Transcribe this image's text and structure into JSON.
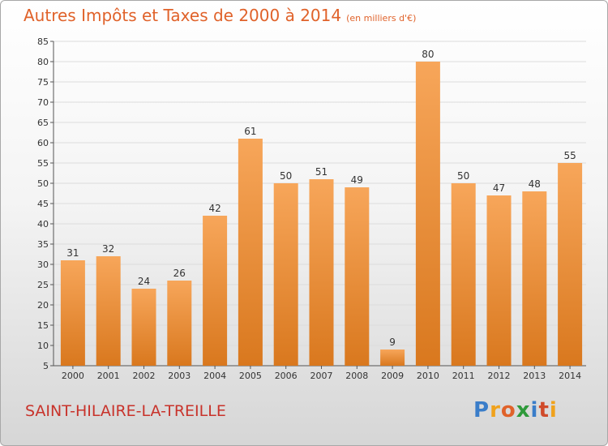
{
  "title": "Autres Impôts et Taxes de 2000 à 2014",
  "subtitle": "(en milliers d'€)",
  "town": "SAINT-HILAIRE-LA-TREILLE",
  "logo": {
    "letters": [
      "P",
      "r",
      "o",
      "x",
      "i",
      "t",
      "i"
    ],
    "colors": [
      "#3a7dc9",
      "#f0a21c",
      "#e0622a",
      "#2f9a3b",
      "#3a7dc9",
      "#d04a2a",
      "#f0a21c"
    ]
  },
  "colors": {
    "title": "#e0622a",
    "bar_top": "#f7a65a",
    "bar_bottom": "#d9781e",
    "town": "#c8332b"
  },
  "chart_data": {
    "type": "bar",
    "title": "Autres Impôts et Taxes de 2000 à 2014",
    "xlabel": "",
    "ylabel": "",
    "categories": [
      "2000",
      "2001",
      "2002",
      "2003",
      "2004",
      "2005",
      "2006",
      "2007",
      "2008",
      "2009",
      "2010",
      "2011",
      "2012",
      "2013",
      "2014"
    ],
    "values": [
      31,
      32,
      24,
      26,
      42,
      61,
      50,
      51,
      49,
      9,
      80,
      50,
      47,
      48,
      55
    ],
    "ylim": [
      5,
      85
    ],
    "yticks": [
      5,
      10,
      15,
      20,
      25,
      30,
      35,
      40,
      45,
      50,
      55,
      60,
      65,
      70,
      75,
      80,
      85
    ],
    "grid": true
  }
}
